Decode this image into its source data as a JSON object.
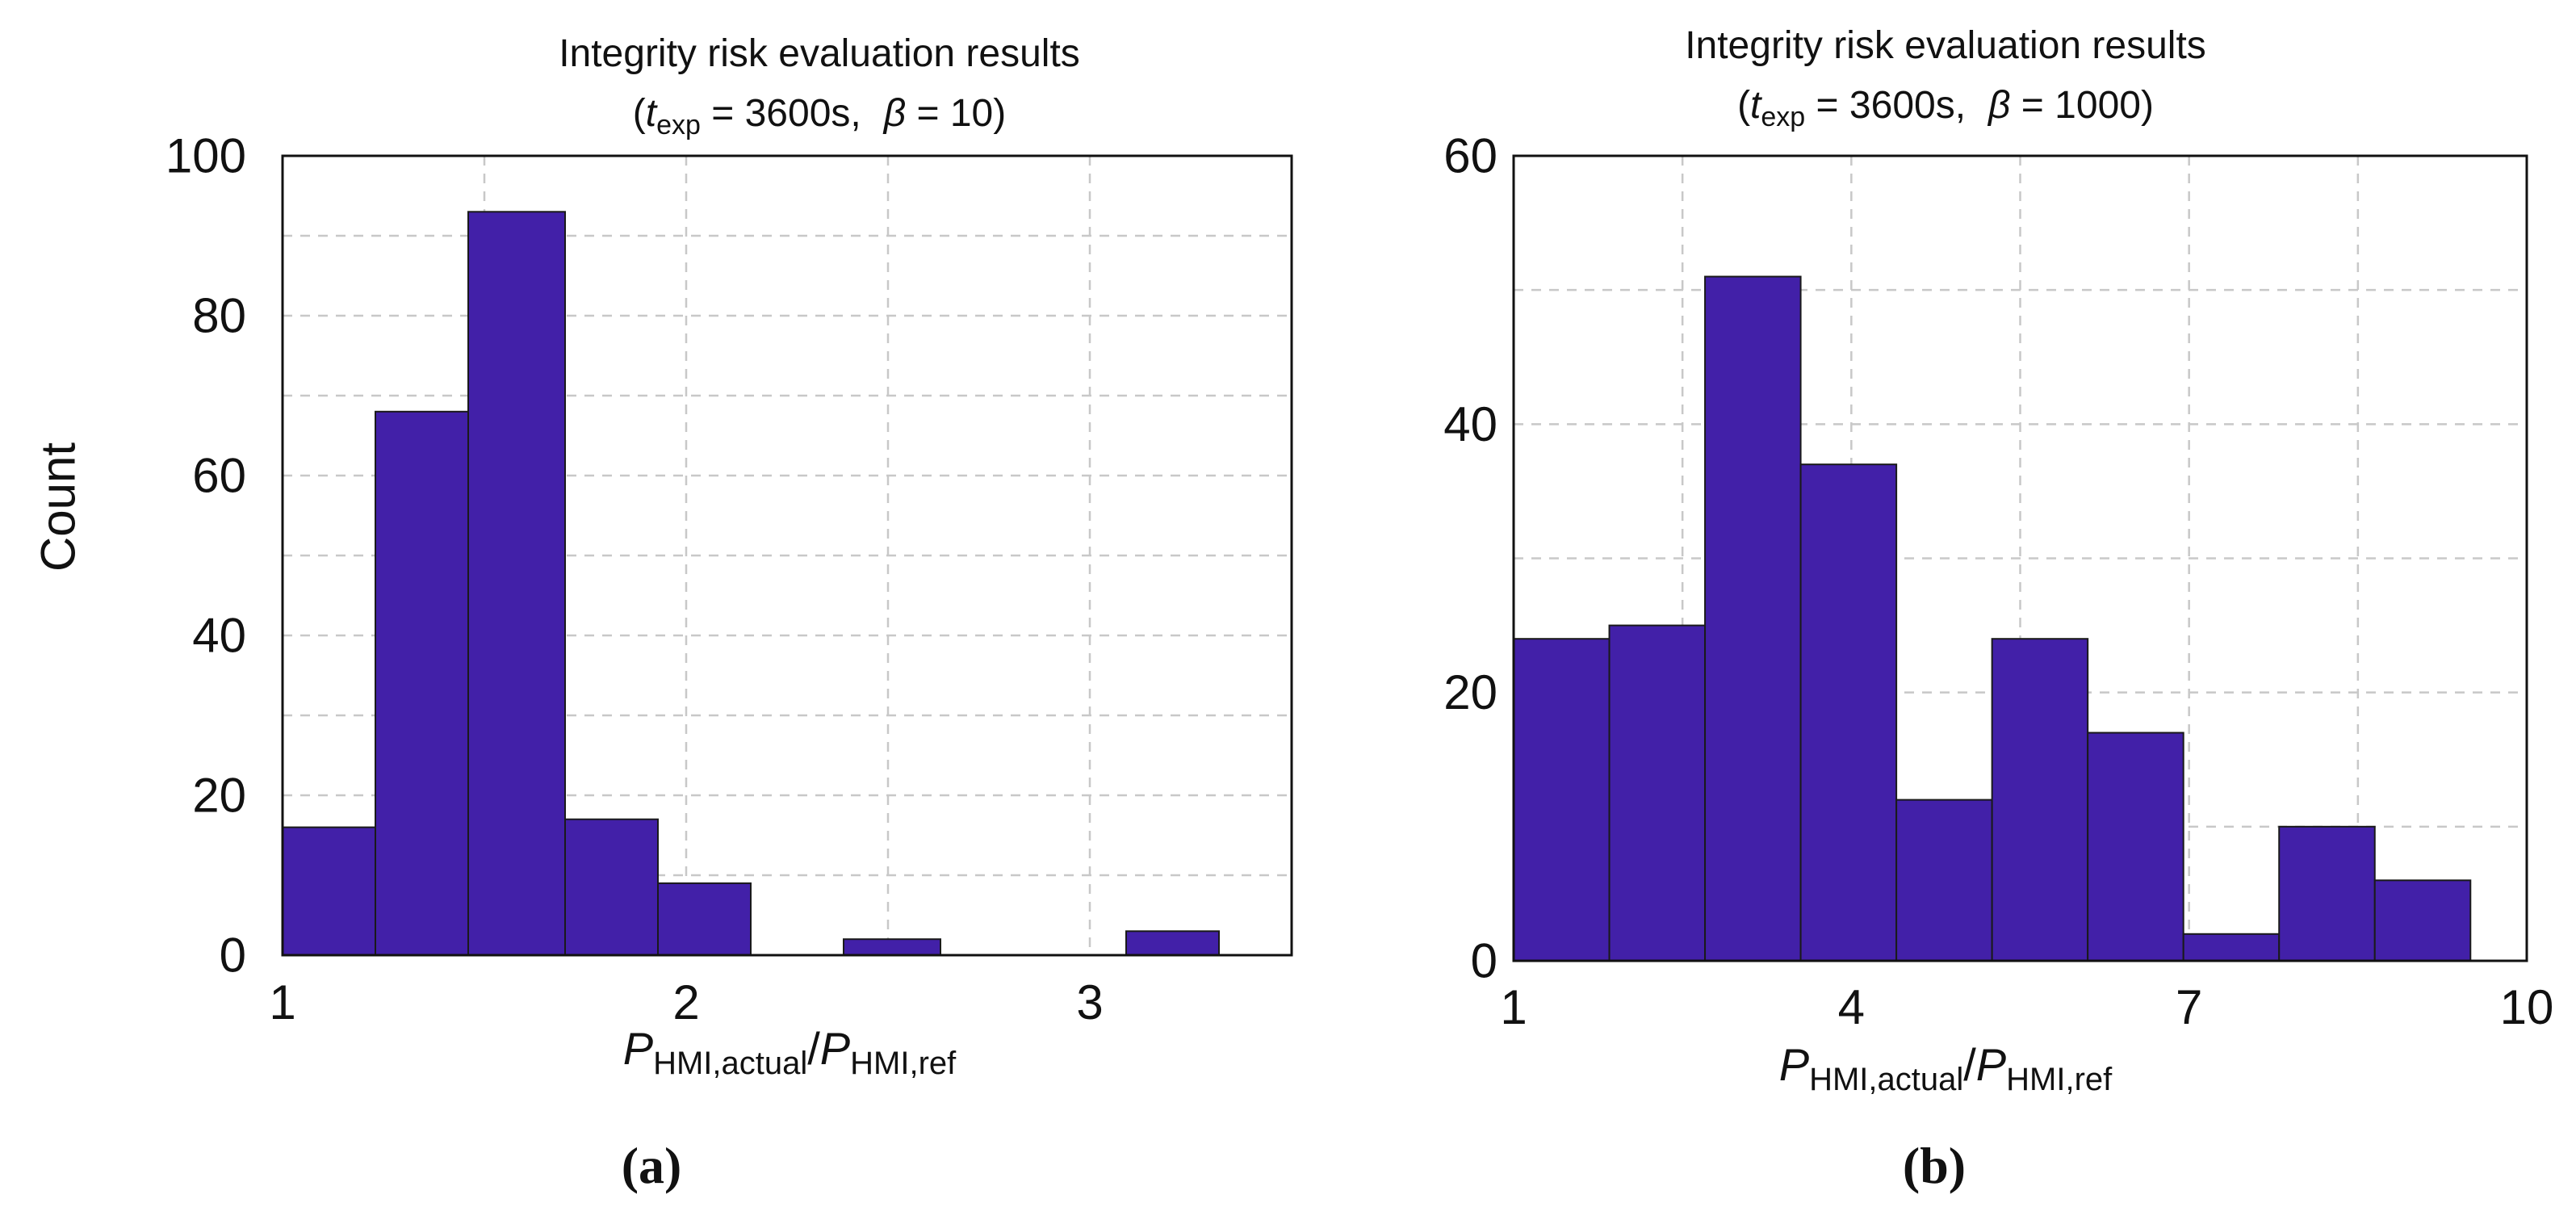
{
  "figure": {
    "shared_ylabel": "Count"
  },
  "chart_data": [
    {
      "type": "bar",
      "panel_label": "(a)",
      "title": "Integrity risk evaluation results",
      "subtitle": {
        "open": "(",
        "t_symbol": "t",
        "t_subscript": "exp",
        "t_value": " = 3600s,",
        "beta_symbol": "β",
        "beta_value": " = 10)"
      },
      "xlabel": {
        "p1": "P",
        "sub1": "HMI,actual",
        "slash": "/",
        "p2": "P",
        "sub2": "HMI,ref"
      },
      "ylabel": "Count",
      "xlim": [
        1,
        3.5
      ],
      "ylim": [
        0,
        100
      ],
      "xticks": [
        1,
        2,
        3
      ],
      "xtick_labels": [
        "1",
        "2",
        "3"
      ],
      "yticks": [
        0,
        20,
        40,
        60,
        80,
        100
      ],
      "ytick_labels": [
        "0",
        "20",
        "40",
        "60",
        "80",
        "100"
      ],
      "x_gridlines": [
        1.5,
        2,
        2.5,
        3
      ],
      "y_gridlines": [
        10,
        20,
        30,
        40,
        50,
        60,
        70,
        80,
        90
      ],
      "bar_color": "#4220A8",
      "bins": [
        {
          "start": 1.0,
          "end": 1.23,
          "count": 16
        },
        {
          "start": 1.23,
          "end": 1.46,
          "count": 68
        },
        {
          "start": 1.46,
          "end": 1.7,
          "count": 93
        },
        {
          "start": 1.7,
          "end": 1.93,
          "count": 17
        },
        {
          "start": 1.93,
          "end": 2.16,
          "count": 9
        },
        {
          "start": 2.16,
          "end": 2.39,
          "count": 0
        },
        {
          "start": 2.39,
          "end": 2.63,
          "count": 2
        },
        {
          "start": 2.63,
          "end": 2.86,
          "count": 0
        },
        {
          "start": 2.86,
          "end": 3.09,
          "count": 0
        },
        {
          "start": 3.09,
          "end": 3.32,
          "count": 3
        }
      ]
    },
    {
      "type": "bar",
      "panel_label": "(b)",
      "title": "Integrity risk evaluation results",
      "subtitle": {
        "open": "(",
        "t_symbol": "t",
        "t_subscript": "exp",
        "t_value": " = 3600s,",
        "beta_symbol": "β",
        "beta_value": " = 1000)"
      },
      "xlabel": {
        "p1": "P",
        "sub1": "HMI,actual",
        "slash": "/",
        "p2": "P",
        "sub2": "HMI,ref"
      },
      "ylabel": "",
      "xlim": [
        1,
        10
      ],
      "ylim": [
        0,
        60
      ],
      "xticks": [
        1,
        4,
        7,
        10
      ],
      "xtick_labels": [
        "1",
        "4",
        "7",
        "10"
      ],
      "yticks": [
        0,
        20,
        40,
        60
      ],
      "ytick_labels": [
        "0",
        "20",
        "40",
        "60"
      ],
      "x_gridlines": [
        2.5,
        4,
        5.5,
        7,
        8.5
      ],
      "y_gridlines": [
        10,
        20,
        30,
        40,
        50
      ],
      "bar_color": "#4220A8",
      "bins": [
        {
          "start": 1.0,
          "end": 1.85,
          "count": 24
        },
        {
          "start": 1.85,
          "end": 2.7,
          "count": 25
        },
        {
          "start": 2.7,
          "end": 3.55,
          "count": 51
        },
        {
          "start": 3.55,
          "end": 4.4,
          "count": 37
        },
        {
          "start": 4.4,
          "end": 5.25,
          "count": 12
        },
        {
          "start": 5.25,
          "end": 6.1,
          "count": 24
        },
        {
          "start": 6.1,
          "end": 6.95,
          "count": 17
        },
        {
          "start": 6.95,
          "end": 7.8,
          "count": 2
        },
        {
          "start": 7.8,
          "end": 8.65,
          "count": 10
        },
        {
          "start": 8.65,
          "end": 9.5,
          "count": 6
        }
      ]
    }
  ]
}
